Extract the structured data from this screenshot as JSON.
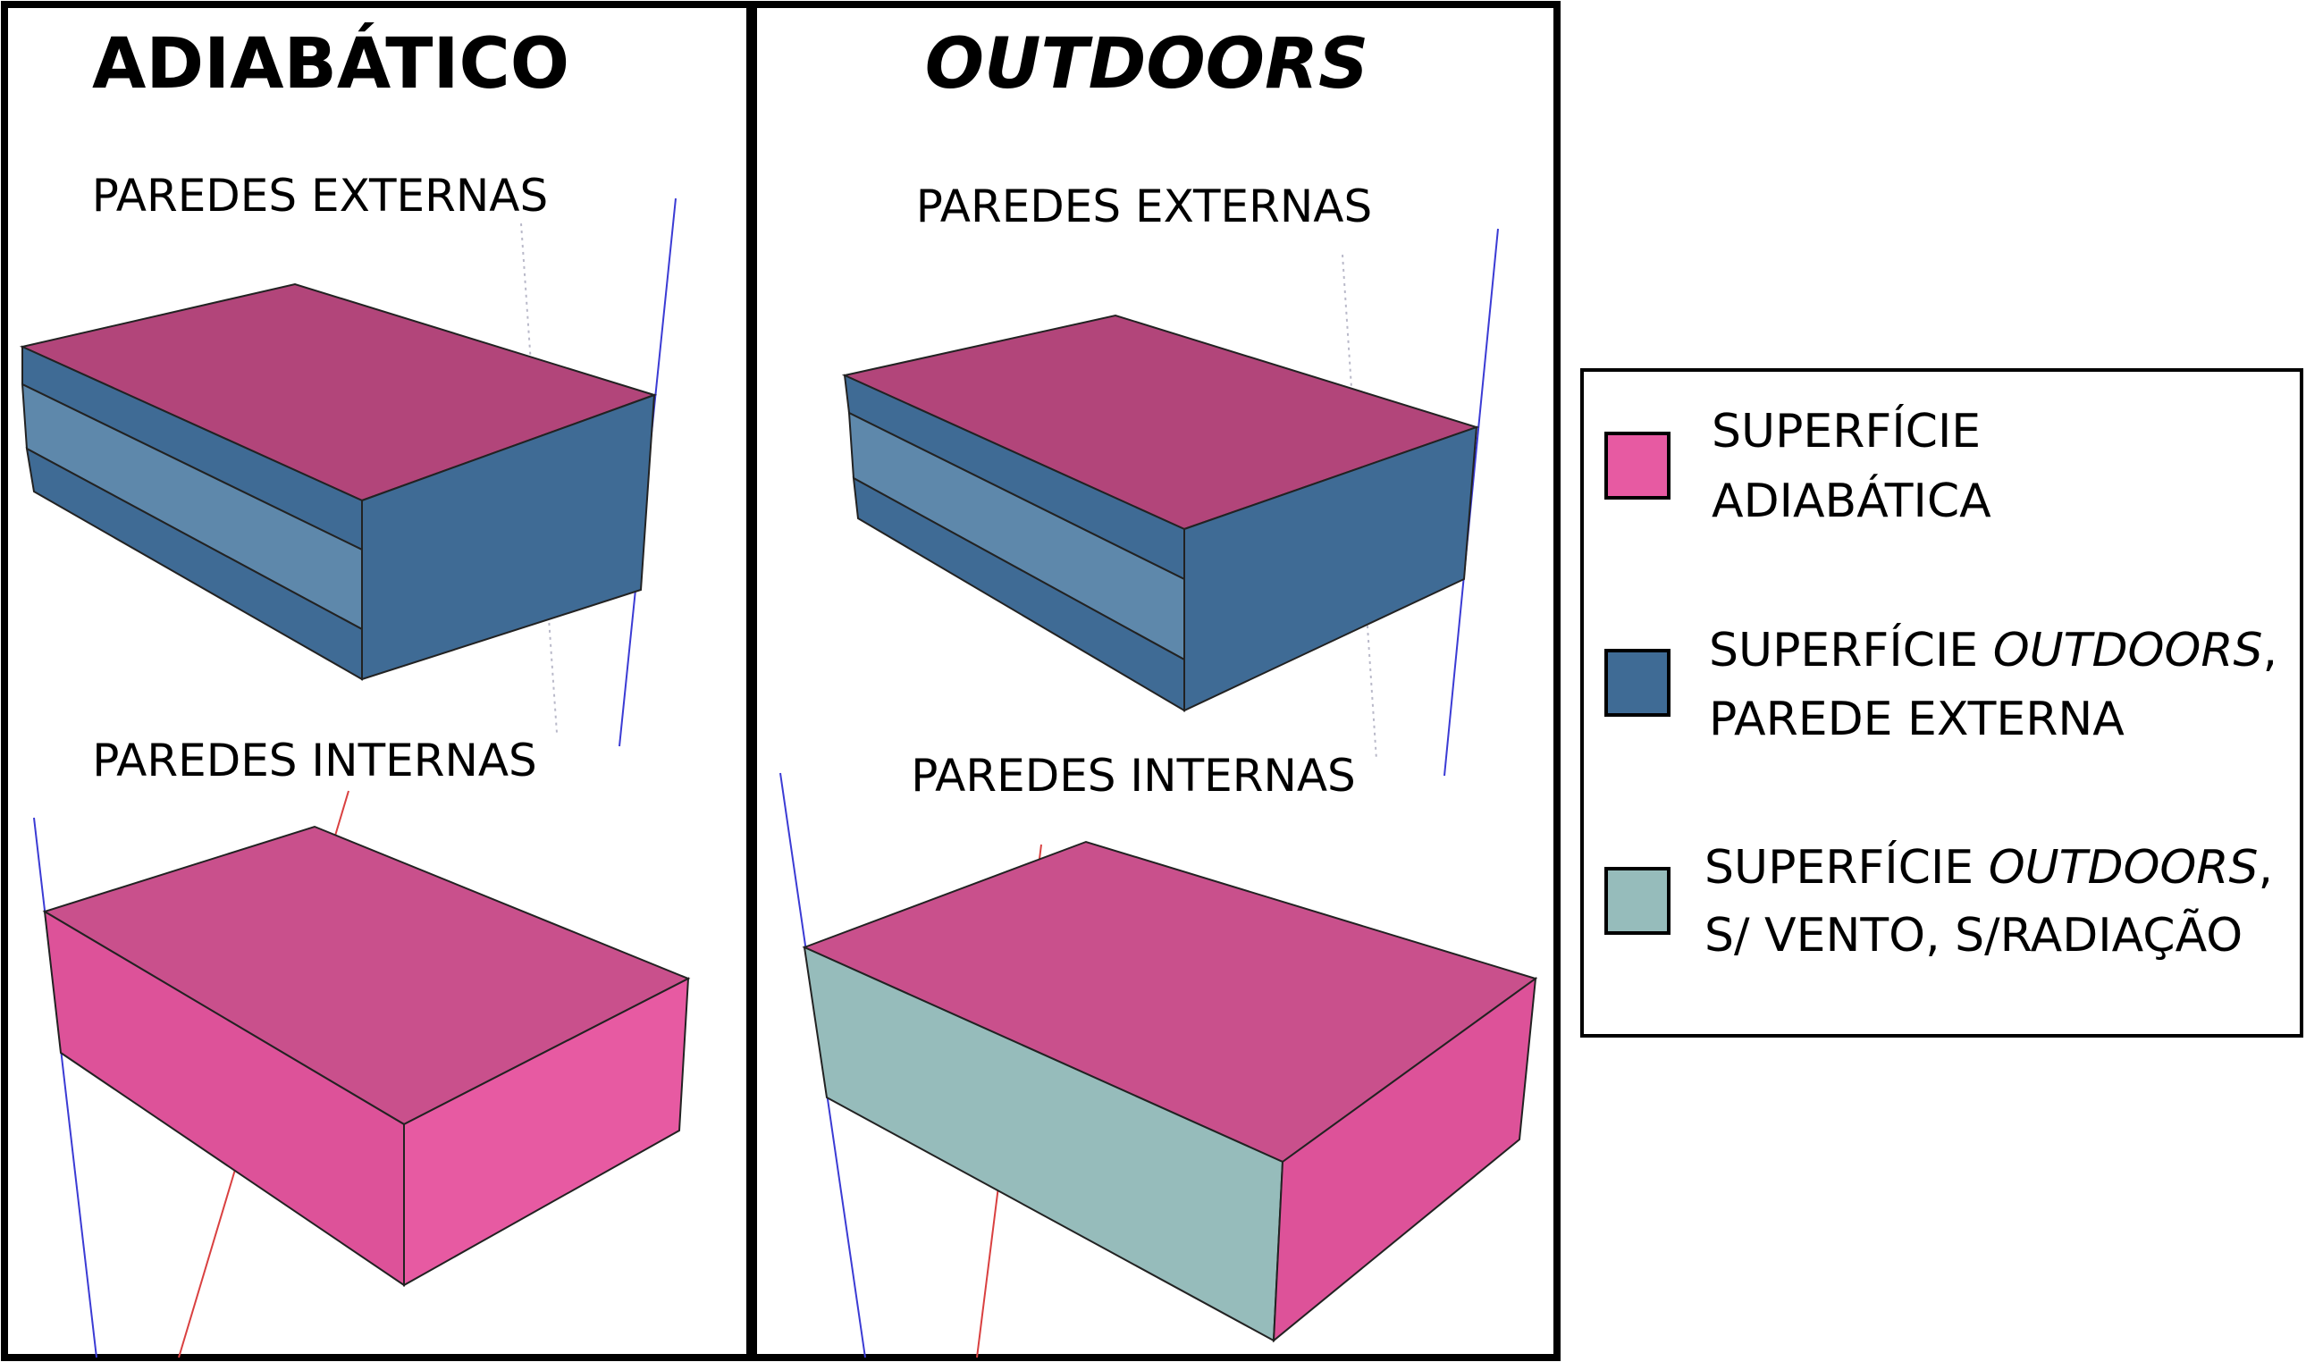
{
  "panels": {
    "left": {
      "title": "ADIABÁTICO",
      "top_label": "PAREDES EXTERNAS",
      "bottom_label": "PAREDES INTERNAS"
    },
    "right": {
      "title": "OUTDOORS",
      "top_label": "PAREDES EXTERNAS",
      "bottom_label": "PAREDES INTERNAS"
    }
  },
  "legend": {
    "items": [
      {
        "line1": "SUPERFÍCIE",
        "line2": "ADIABÁTICA",
        "color": "#e75aa2"
      },
      {
        "line1_pre": "SUPERFÍCIE ",
        "line1_em": "OUTDOORS",
        "line1_post": ",",
        "line2": "PAREDE EXTERNA",
        "color": "#3f6b95"
      },
      {
        "line1_pre": "SUPERFÍCIE ",
        "line1_em": "OUTDOORS",
        "line1_post": ",",
        "line2": "S/ VENTO, S/RADIAÇÃO",
        "color": "#96bcbb"
      }
    ]
  },
  "colors": {
    "top_face": "#b2457a",
    "top_face_light": "#c9508c",
    "side_blue": "#3f6b95",
    "side_blue_stripe": "#5e88ab",
    "side_pink": "#e75aa2",
    "side_pink_dark": "#dd5299",
    "side_teal": "#96bcbb",
    "frame": "#000000"
  }
}
